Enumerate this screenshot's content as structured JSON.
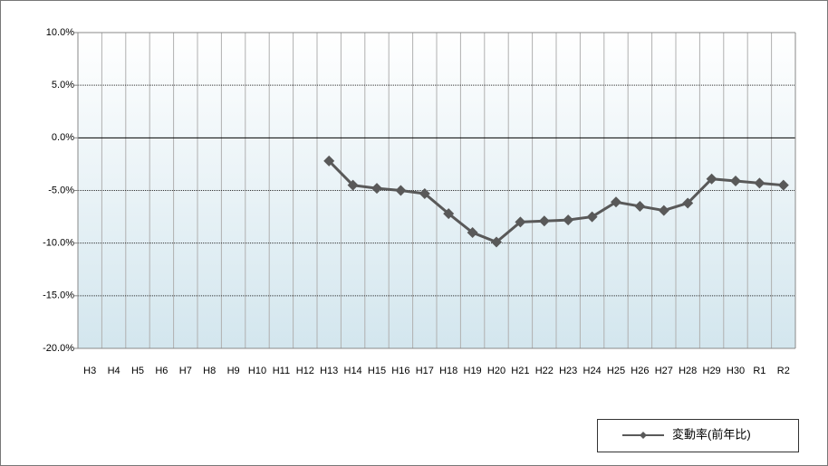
{
  "chart_data": {
    "type": "line",
    "categories": [
      "H3",
      "H4",
      "H5",
      "H6",
      "H7",
      "H8",
      "H9",
      "H10",
      "H11",
      "H12",
      "H13",
      "H14",
      "H15",
      "H16",
      "H17",
      "H18",
      "H19",
      "H20",
      "H21",
      "H22",
      "H23",
      "H24",
      "H25",
      "H26",
      "H27",
      "H28",
      "H29",
      "H30",
      "R1",
      "R2"
    ],
    "series": [
      {
        "name": "変動率(前年比)",
        "color": "#595959",
        "values": [
          null,
          null,
          null,
          null,
          null,
          null,
          null,
          null,
          null,
          null,
          -2.2,
          -4.5,
          -4.8,
          -5.0,
          -5.3,
          -7.2,
          -9.0,
          -9.9,
          -8.0,
          -7.9,
          -7.8,
          -7.5,
          -6.1,
          -6.5,
          -6.9,
          -6.2,
          -3.9,
          -4.1,
          -4.3,
          -4.5
        ]
      }
    ],
    "ylim": [
      -20,
      10
    ],
    "yticks": [
      {
        "value": -20,
        "label": "-20.0%"
      },
      {
        "value": -15,
        "label": "-15.0%"
      },
      {
        "value": -10,
        "label": "-10.0%"
      },
      {
        "value": -5,
        "label": "-5.0%"
      },
      {
        "value": 0,
        "label": "0.0%"
      },
      {
        "value": 5,
        "label": "5.0%"
      },
      {
        "value": 10,
        "label": "10.0%"
      }
    ],
    "grid": true,
    "legend": "lower right"
  }
}
